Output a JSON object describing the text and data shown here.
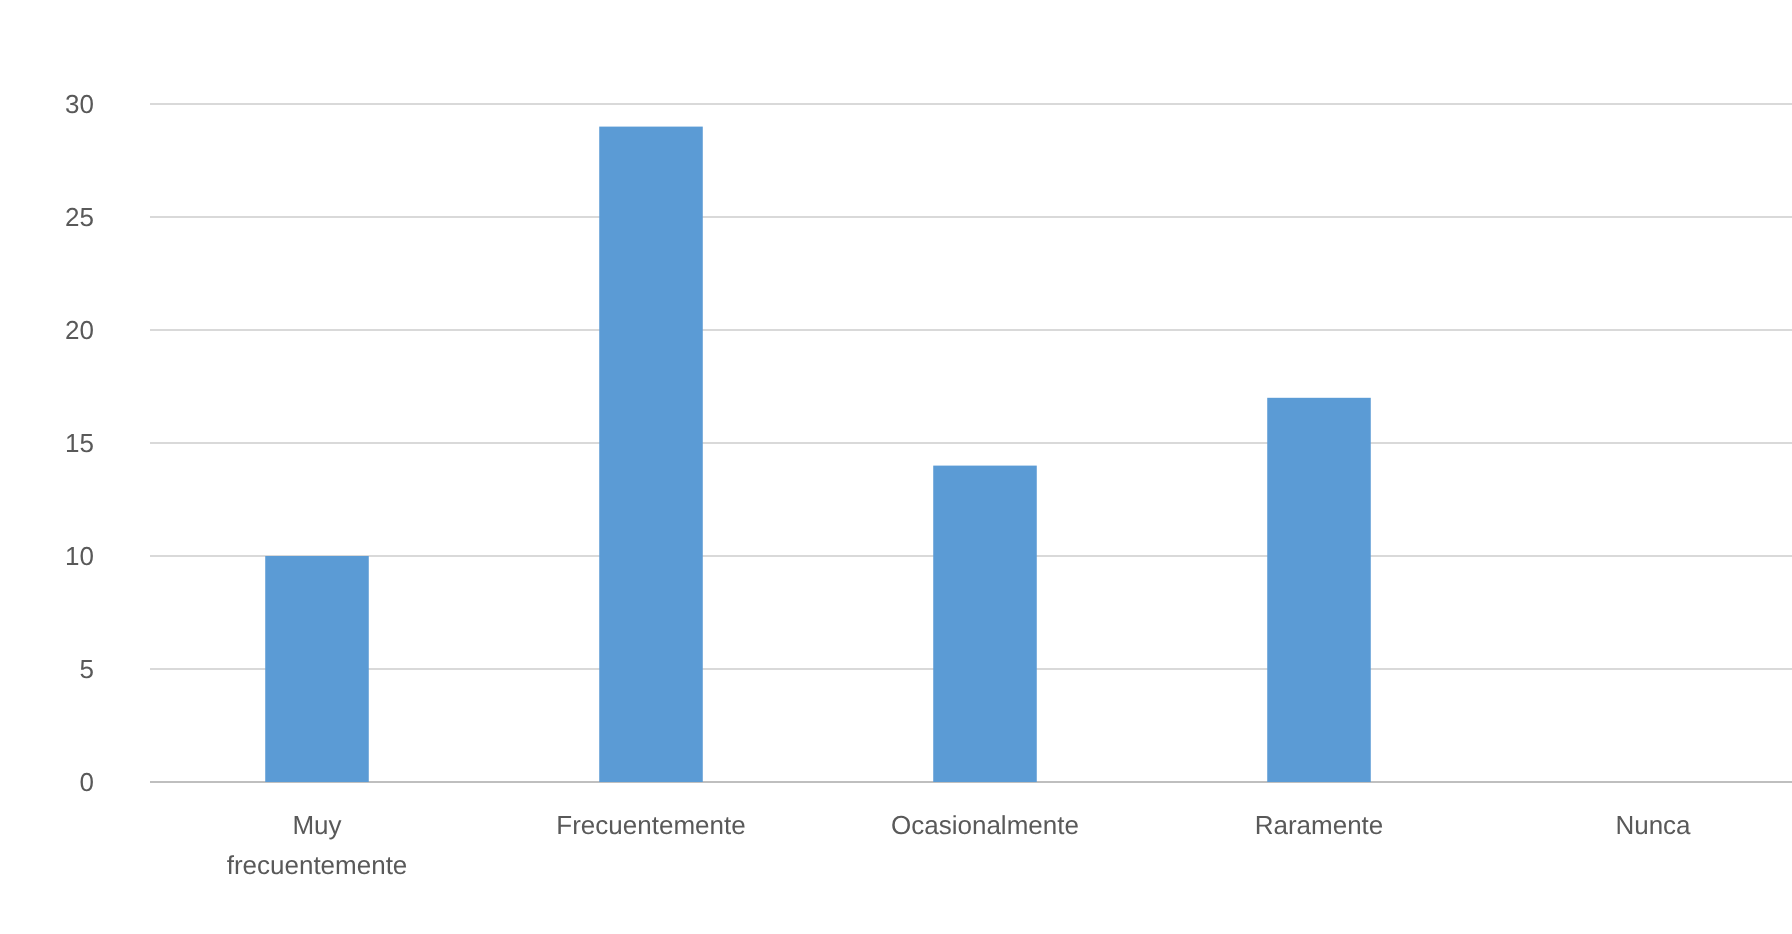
{
  "chart_data": {
    "type": "bar",
    "categories": [
      "Muy frecuentemente",
      "Frecuentemente",
      "Ocasionalmente",
      "Raramente",
      "Nunca"
    ],
    "values": [
      10,
      29,
      14,
      17,
      0
    ],
    "color": "#5b9bd5",
    "ylim": [
      0,
      30
    ],
    "yticks": [
      0,
      5,
      10,
      15,
      20,
      25,
      30
    ],
    "grid": "y"
  }
}
